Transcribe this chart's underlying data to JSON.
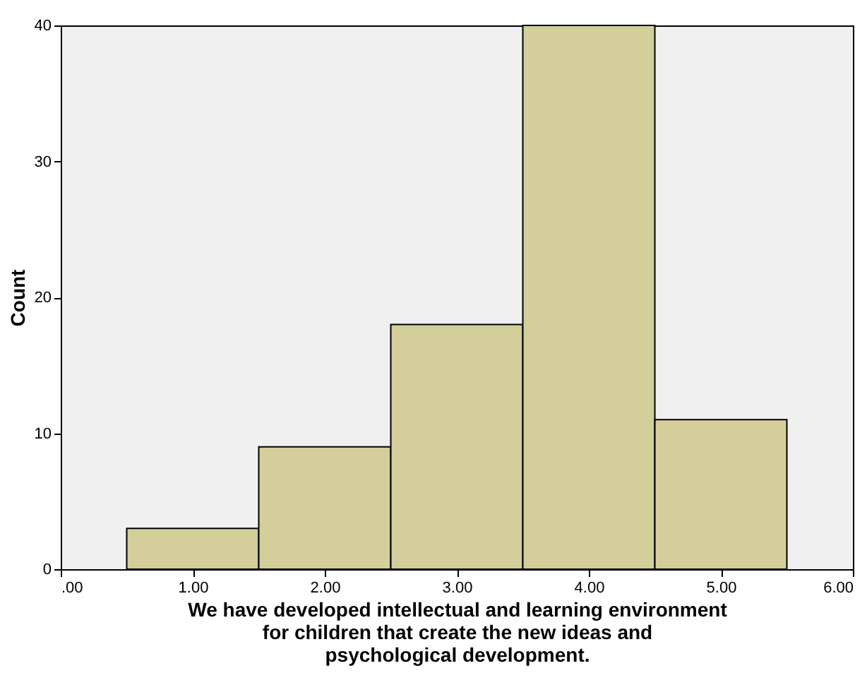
{
  "chart_data": {
    "type": "histogram",
    "xlabel": "We have developed intellectual and learning environment for children that create the new ideas and psychological development.",
    "ylabel": "Count",
    "bins": [
      0.5,
      1.5,
      2.5,
      3.5,
      4.5,
      5.5
    ],
    "values": [
      3,
      9,
      18,
      40,
      11
    ],
    "color": "#d4cf9a",
    "xlim": [
      0,
      6
    ],
    "xticks": [
      {
        "value": 0,
        "label": ".00"
      },
      {
        "value": 1,
        "label": "1.00"
      },
      {
        "value": 2,
        "label": "2.00"
      },
      {
        "value": 3,
        "label": "3.00"
      },
      {
        "value": 4,
        "label": "4.00"
      },
      {
        "value": 5,
        "label": "5.00"
      },
      {
        "value": 6,
        "label": "6.00"
      }
    ],
    "ylim": [
      0,
      40
    ],
    "yticks": [
      0,
      10,
      20,
      30,
      40
    ],
    "grid": false
  }
}
